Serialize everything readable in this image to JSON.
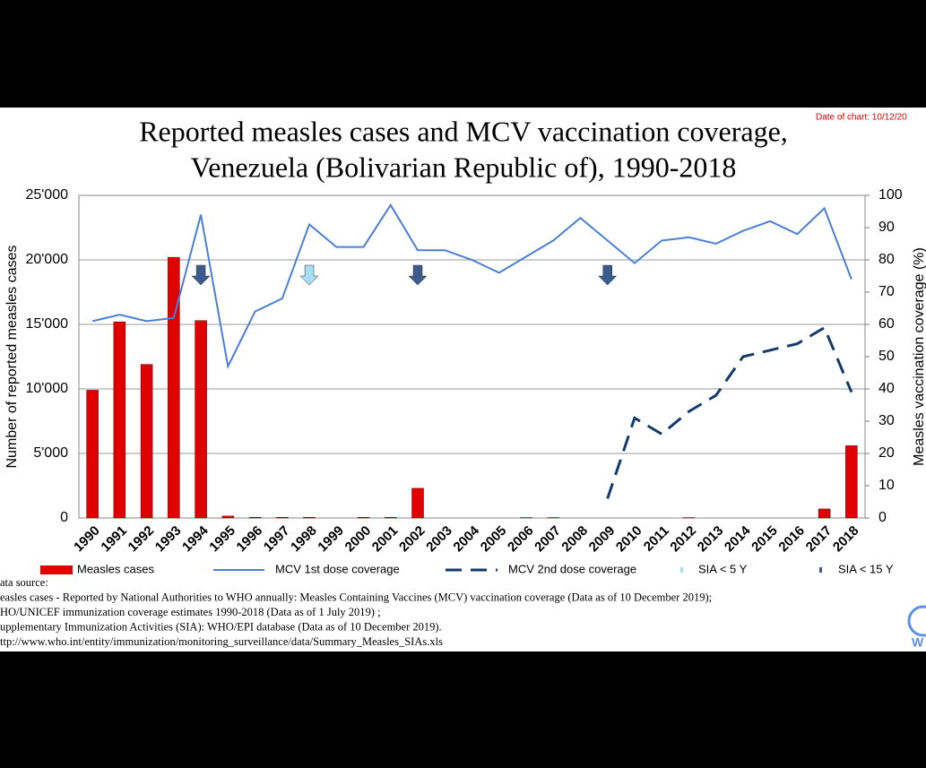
{
  "chart_data": {
    "type": "bar_line",
    "title": [
      "Reported measles cases and MCV vaccination coverage,",
      "Venezuela (Bolivarian Republic of), 1990-2018"
    ],
    "date_note": "Date of chart: 10/12/20",
    "y_label": "Number of reported measles cases",
    "y2_label": "Measles vaccination coverage (%)",
    "categories": [
      "1990",
      "1991",
      "1992",
      "1993",
      "1994",
      "1995",
      "1996",
      "1997",
      "1998",
      "1999",
      "2000",
      "2001",
      "2002",
      "2003",
      "2004",
      "2005",
      "2006",
      "2007",
      "2008",
      "2009",
      "2010",
      "2011",
      "2012",
      "2013",
      "2014",
      "2015",
      "2016",
      "2017",
      "2018"
    ],
    "series": [
      {
        "name": "Measles cases",
        "kind": "bar",
        "color": "#e00000",
        "values": [
          9900,
          15200,
          11900,
          20200,
          15300,
          150,
          50,
          50,
          50,
          0,
          50,
          50,
          2300,
          0,
          0,
          0,
          30,
          30,
          0,
          0,
          0,
          0,
          30,
          0,
          0,
          0,
          0,
          700,
          5600
        ]
      },
      {
        "name": "MCV 1st dose coverage",
        "kind": "line",
        "axis": "y2",
        "color": "#4a7fd4",
        "values": [
          61,
          63,
          61,
          62,
          94,
          47,
          64,
          68,
          91,
          84,
          84,
          97,
          83,
          83,
          80,
          76,
          81,
          86,
          93,
          86,
          79,
          86,
          87,
          85,
          89,
          92,
          88,
          96,
          74
        ]
      },
      {
        "name": "MCV 2nd dose coverage",
        "kind": "dashed",
        "axis": "y2",
        "color": "#123b6b",
        "values": [
          null,
          null,
          null,
          null,
          null,
          null,
          null,
          null,
          null,
          null,
          null,
          null,
          null,
          null,
          null,
          null,
          null,
          null,
          null,
          6,
          31,
          26,
          33,
          38,
          50,
          52,
          54,
          59,
          39
        ]
      }
    ],
    "sia": [
      {
        "name": "SIA < 5 Y",
        "color": "#a8dcf0",
        "years": [
          "1998"
        ]
      },
      {
        "name": "SIA < 15 Y",
        "color": "#3c5a8a",
        "years": [
          "1994",
          "2002",
          "2009"
        ]
      }
    ],
    "ylim": [
      0,
      25000
    ],
    "yticks": [
      0,
      {
        "value": 5000,
        "label": "5'000"
      },
      {
        "value": 10000,
        "label": "10'000"
      },
      {
        "value": 15000,
        "label": "15'000"
      },
      {
        "value": 20000,
        "label": "20'000"
      },
      {
        "value": 25000,
        "label": "25'000"
      }
    ],
    "y2lim": [
      0,
      100
    ],
    "y2ticks": [
      0,
      10,
      20,
      30,
      40,
      50,
      60,
      70,
      80,
      90,
      100
    ],
    "grid": true,
    "source": [
      "ata source:",
      "easles cases - Reported by National Authorities to WHO annually:  Measles Containing Vaccines  (MCV) vaccination coverage  (Data as of 10 December 2019);",
      "HO/UNICEF immunization coverage  estimates 1990-2018 (Data as of 1 July 2019) ;",
      "upplementary Immunization Activities  (SIA): WHO/EPI database (Data as of 10 December  2019).",
      "ttp://www.who.int/entity/immunization/monitoring_surveillance/data/Summary_Measles_SIAs.xls"
    ],
    "logo": "W"
  }
}
